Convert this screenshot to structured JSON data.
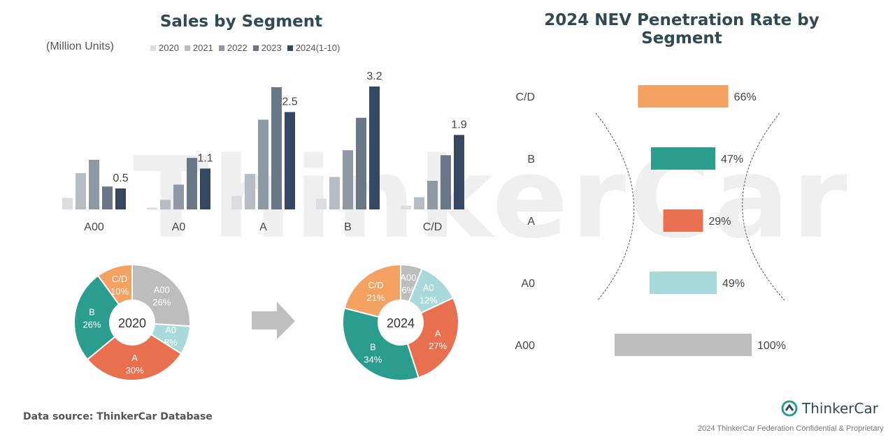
{
  "watermark": "ThinkerCar",
  "chart_data": [
    {
      "type": "bar",
      "title": "Sales by Segment",
      "unit_label": "(Million Units)",
      "categories": [
        "A00",
        "A0",
        "A",
        "B",
        "C/D"
      ],
      "series": [
        {
          "name": "2020",
          "color": "#dcdde0",
          "values": [
            0.3,
            0.05,
            0.35,
            0.28,
            0.1
          ]
        },
        {
          "name": "2021",
          "color": "#b6bcc4",
          "values": [
            0.95,
            0.25,
            0.93,
            0.85,
            0.32
          ]
        },
        {
          "name": "2022",
          "color": "#8f99a4",
          "values": [
            1.3,
            0.65,
            2.35,
            1.55,
            0.75
          ]
        },
        {
          "name": "2023",
          "color": "#6a7786",
          "values": [
            0.6,
            1.35,
            3.2,
            2.4,
            1.42
          ]
        },
        {
          "name": "2024(1-10)",
          "color": "#354761",
          "values": [
            0.55,
            1.07,
            2.55,
            3.22,
            1.95
          ]
        }
      ],
      "data_labels": [
        "0.5",
        "1.1",
        "2.5",
        "3.2",
        "1.9"
      ],
      "ylim": [
        0,
        3.4
      ]
    },
    {
      "type": "pie",
      "center_label": "2020",
      "slices": [
        {
          "label": "A00",
          "pct": "26%",
          "value": 26,
          "color": "#bdbdbd"
        },
        {
          "label": "A0",
          "pct": "8%",
          "value": 8,
          "color": "#a8dadb"
        },
        {
          "label": "A",
          "pct": "30%",
          "value": 30,
          "color": "#e8704f"
        },
        {
          "label": "B",
          "pct": "26%",
          "value": 26,
          "color": "#2a9d8f"
        },
        {
          "label": "C/D",
          "pct": "10%",
          "value": 10,
          "color": "#f4a261"
        }
      ]
    },
    {
      "type": "pie",
      "center_label": "2024",
      "slices": [
        {
          "label": "A00",
          "pct": "6%",
          "value": 6,
          "color": "#bdbdbd"
        },
        {
          "label": "A0",
          "pct": "12%",
          "value": 12,
          "color": "#a8dadb"
        },
        {
          "label": "A",
          "pct": "27%",
          "value": 27,
          "color": "#e8704f"
        },
        {
          "label": "B",
          "pct": "34%",
          "value": 34,
          "color": "#2a9d8f"
        },
        {
          "label": "C/D",
          "pct": "21%",
          "value": 21,
          "color": "#f4a261"
        }
      ]
    },
    {
      "type": "bar",
      "orientation": "horizontal-centered",
      "title": "2024 NEV Penetration Rate by Segment",
      "categories": [
        "C/D",
        "B",
        "A",
        "A0",
        "A00"
      ],
      "values": [
        66,
        47,
        29,
        49,
        100
      ],
      "value_labels": [
        "66%",
        "47%",
        "29%",
        "49%",
        "100%"
      ],
      "colors": [
        "#f4a261",
        "#2a9d8f",
        "#e8704f",
        "#a8dadb",
        "#bdbdbd"
      ]
    }
  ],
  "footer": {
    "source": "Data source: ThinkerCar Database",
    "brand": "ThinkerCar",
    "legal": "2024 ThinkerCar Federation Confidential & Proprietary"
  }
}
